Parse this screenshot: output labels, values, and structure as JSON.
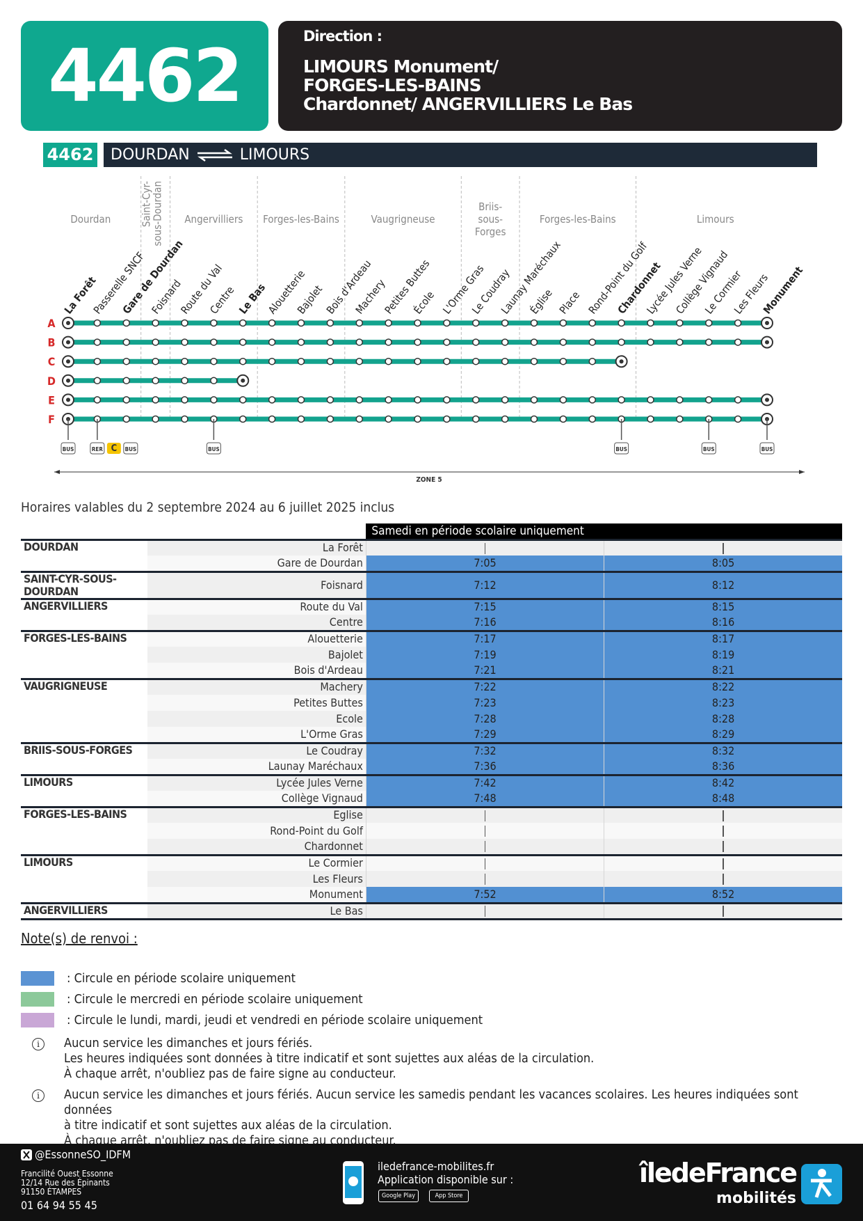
{
  "header": {
    "line": "4462",
    "direction_label": "Direction :",
    "direction": [
      "LIMOURS Monument/",
      "FORGES-LES-BAINS",
      "Chardonnet/ ANGERVILLIERS Le Bas"
    ]
  },
  "route_bar": {
    "line": "4462",
    "from": "DOURDAN",
    "to": "LIMOURS"
  },
  "map": {
    "line_color": "#13a38e",
    "communes": [
      {
        "name": [
          "Dourdan"
        ],
        "from": 0,
        "to": 2
      },
      {
        "name": [
          "Saint-Cyr-",
          "sous-Dourdan"
        ],
        "from": 3,
        "to": 3,
        "vertical": true
      },
      {
        "name": [
          "Angervilliers"
        ],
        "from": 4,
        "to": 6
      },
      {
        "name": [
          "Forges-les-Bains"
        ],
        "from": 7,
        "to": 9
      },
      {
        "name": [
          "Vaugrigneuse"
        ],
        "from": 10,
        "to": 13
      },
      {
        "name": [
          "Briis-",
          "sous-",
          "Forges"
        ],
        "from": 14,
        "to": 15
      },
      {
        "name": [
          "Forges-les-Bains"
        ],
        "from": 16,
        "to": 19
      },
      {
        "name": [
          "Limours"
        ],
        "from": 20,
        "to": 24
      }
    ],
    "stops": [
      {
        "name": "La Forêt",
        "bold": true
      },
      {
        "name": "Passerelle SNCF"
      },
      {
        "name": "Gare de Dourdan",
        "bold": true
      },
      {
        "name": "Foisnard"
      },
      {
        "name": "Route du Val"
      },
      {
        "name": "Centre"
      },
      {
        "name": "Le Bas",
        "bold": true
      },
      {
        "name": "Alouetterie"
      },
      {
        "name": "Bajolet"
      },
      {
        "name": "Bois d'Ardeau"
      },
      {
        "name": "Machery"
      },
      {
        "name": "Petites Buttes"
      },
      {
        "name": "École"
      },
      {
        "name": "L'Orme Gras"
      },
      {
        "name": "Le Coudray"
      },
      {
        "name": "Launay Maréchaux"
      },
      {
        "name": "Église"
      },
      {
        "name": "Place"
      },
      {
        "name": "Rond-Point du Golf"
      },
      {
        "name": "Chardonnet",
        "bold": true
      },
      {
        "name": "Lycée Jules Verne"
      },
      {
        "name": "Collège Vignaud"
      },
      {
        "name": "Le Cormier"
      },
      {
        "name": "Les Fleurs"
      },
      {
        "name": "Monument",
        "bold": true
      }
    ],
    "rows": [
      {
        "letter": "A",
        "from": 0,
        "to": 24
      },
      {
        "letter": "B",
        "from": 0,
        "to": 24
      },
      {
        "letter": "C",
        "from": 0,
        "to": 19
      },
      {
        "letter": "D",
        "from": 0,
        "to": 6
      },
      {
        "letter": "E",
        "from": 0,
        "to": 24
      },
      {
        "letter": "F",
        "from": 0,
        "to": 24
      }
    ],
    "connections": [
      {
        "stop": 0,
        "labels": [
          "BUS"
        ]
      },
      {
        "stop": 1,
        "labels": [
          "RER",
          "C",
          "BUS"
        ]
      },
      {
        "stop": 5,
        "labels": [
          "BUS"
        ]
      },
      {
        "stop": 19,
        "labels": [
          "BUS"
        ]
      },
      {
        "stop": 22,
        "labels": [
          "BUS"
        ]
      },
      {
        "stop": 24,
        "labels": [
          "BUS"
        ]
      }
    ],
    "zone": "ZONE 5"
  },
  "validity": "Horaires valables du 2 septembre 2024 au 6 juillet 2025 inclus",
  "timetable": {
    "column_header": "Samedi en période scolaire uniquement",
    "highlight_color": "#5290d2",
    "groups": [
      {
        "commune": "DOURDAN",
        "stops": [
          {
            "name": "La Forêt",
            "times": [
              null,
              null
            ]
          },
          {
            "name": "Gare de Dourdan",
            "times": [
              "7:05",
              "8:05"
            ]
          }
        ]
      },
      {
        "commune": "SAINT-CYR-SOUS-DOURDAN",
        "stops": [
          {
            "name": "Foisnard",
            "times": [
              "7:12",
              "8:12"
            ]
          }
        ]
      },
      {
        "commune": "ANGERVILLIERS",
        "stops": [
          {
            "name": "Route du Val",
            "times": [
              "7:15",
              "8:15"
            ]
          },
          {
            "name": "Centre",
            "times": [
              "7:16",
              "8:16"
            ]
          }
        ]
      },
      {
        "commune": "FORGES-LES-BAINS",
        "stops": [
          {
            "name": "Alouetterie",
            "times": [
              "7:17",
              "8:17"
            ]
          },
          {
            "name": "Bajolet",
            "times": [
              "7:19",
              "8:19"
            ]
          },
          {
            "name": "Bois d'Ardeau",
            "times": [
              "7:21",
              "8:21"
            ]
          }
        ]
      },
      {
        "commune": "VAUGRIGNEUSE",
        "stops": [
          {
            "name": "Machery",
            "times": [
              "7:22",
              "8:22"
            ]
          },
          {
            "name": "Petites Buttes",
            "times": [
              "7:23",
              "8:23"
            ]
          },
          {
            "name": "Ecole",
            "times": [
              "7:28",
              "8:28"
            ]
          },
          {
            "name": "L'Orme Gras",
            "times": [
              "7:29",
              "8:29"
            ]
          }
        ]
      },
      {
        "commune": "BRIIS-SOUS-FORGES",
        "stops": [
          {
            "name": "Le Coudray",
            "times": [
              "7:32",
              "8:32"
            ]
          },
          {
            "name": "Launay Maréchaux",
            "times": [
              "7:36",
              "8:36"
            ]
          }
        ]
      },
      {
        "commune": "LIMOURS",
        "stops": [
          {
            "name": "Lycée Jules Verne",
            "times": [
              "7:42",
              "8:42"
            ]
          },
          {
            "name": "Collège Vignaud",
            "times": [
              "7:48",
              "8:48"
            ]
          }
        ]
      },
      {
        "commune": "FORGES-LES-BAINS",
        "stops": [
          {
            "name": "Eglise",
            "times": [
              null,
              null
            ]
          },
          {
            "name": "Rond-Point du Golf",
            "times": [
              null,
              null
            ]
          },
          {
            "name": "Chardonnet",
            "times": [
              null,
              null
            ]
          }
        ]
      },
      {
        "commune": "LIMOURS",
        "stops": [
          {
            "name": "Le Cormier",
            "times": [
              null,
              null
            ]
          },
          {
            "name": "Les Fleurs",
            "times": [
              null,
              null
            ]
          },
          {
            "name": "Monument",
            "times": [
              "7:52",
              "8:52"
            ]
          }
        ]
      },
      {
        "commune": "ANGERVILLIERS",
        "stops": [
          {
            "name": "Le Bas",
            "times": [
              null,
              null
            ]
          }
        ]
      }
    ]
  },
  "notes": {
    "title": "Note(s) de renvoi :",
    "legend": [
      {
        "color": "#5b93d3",
        "text": ": Circule en période scolaire uniquement"
      },
      {
        "color": "#8cc99a",
        "text": ": Circule le mercredi en période scolaire uniquement"
      },
      {
        "color": "#c9a7d6",
        "text": ": Circule le lundi, mardi, jeudi et vendredi en période scolaire uniquement"
      }
    ],
    "info": [
      [
        "Aucun service les dimanches et jours fériés.",
        "Les heures indiquées sont données à titre indicatif et sont sujettes aux aléas de la circulation.",
        "À chaque arrêt, n'oubliez pas de faire signe au conducteur."
      ],
      [
        "Aucun service les dimanches et jours fériés. Aucun service les samedis pendant les vacances scolaires. Les heures indiquées sont données",
        "à titre indicatif et sont sujettes aux aléas de la circulation.",
        "À chaque arrêt, n'oubliez pas de faire signe au conducteur."
      ]
    ]
  },
  "footer": {
    "social": "@EssonneSO_IDFM",
    "address": [
      "Francilité Ouest Essonne",
      "12/14 Rue des Épinants",
      "91150 ÉTAMPES"
    ],
    "phone": "01 64 94 55 45",
    "website": "iledefrance-mobilites.fr",
    "app": "Application disponible sur :",
    "stores": [
      "Google Play",
      "App Store"
    ],
    "logo": [
      "îledeFrance",
      "mobilités"
    ]
  }
}
